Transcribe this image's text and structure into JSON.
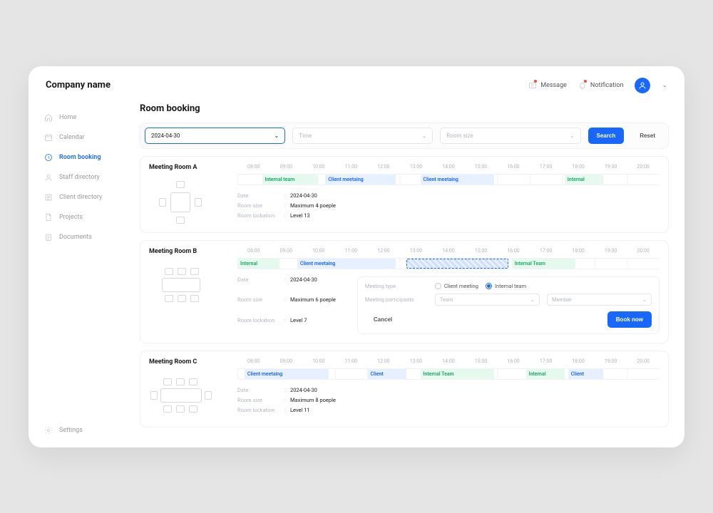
{
  "brand": "Company name",
  "header": {
    "message_label": "Message",
    "notification_label": "Notification"
  },
  "sidebar": {
    "items": [
      {
        "id": "home",
        "label": "Home"
      },
      {
        "id": "calendar",
        "label": "Calendar"
      },
      {
        "id": "room-booking",
        "label": "Room booking"
      },
      {
        "id": "staff",
        "label": "Staff directory"
      },
      {
        "id": "client",
        "label": "Client directory"
      },
      {
        "id": "projects",
        "label": "Projects"
      },
      {
        "id": "documents",
        "label": "Documents"
      }
    ],
    "footer": {
      "label": "Settings"
    },
    "active": "room-booking"
  },
  "page_title": "Room booking",
  "filters": {
    "date_value": "2024-04-30",
    "time_placeholder": "Time",
    "size_placeholder": "Room size",
    "search_label": "Search",
    "reset_label": "Reset"
  },
  "hours": [
    "08:00",
    "09:00",
    "10:00",
    "11:00",
    "12:00",
    "13:00",
    "14:00",
    "15:00",
    "16:00",
    "17:00",
    "18:00",
    "19:00",
    "20:00"
  ],
  "detail_keys": {
    "date": "Date",
    "size": "Room size",
    "location": "Room lockation"
  },
  "rooms": [
    {
      "name": "Meeting Room A",
      "date": "2024-04-30",
      "size": "Maximum 4 poeple",
      "location": "Level 13",
      "layout_type": "square4",
      "slots": [
        {
          "type": "internal",
          "label": "Internal team",
          "start": 8.7,
          "end": 10.3
        },
        {
          "type": "client",
          "label": "Client meetaing",
          "start": 10.5,
          "end": 12.5
        },
        {
          "type": "client",
          "label": "Client meetaing",
          "start": 13.2,
          "end": 15.3
        },
        {
          "type": "internal",
          "label": "Internal",
          "start": 17.3,
          "end": 18.4
        }
      ]
    },
    {
      "name": "Meeting Room B",
      "date": "2024-04-30",
      "size": "Maximum 6 poeple",
      "location": "Level 7",
      "layout_type": "rect6",
      "slots": [
        {
          "type": "internal",
          "label": "Internal",
          "start": 8.0,
          "end": 9.2
        },
        {
          "type": "client",
          "label": "Client meetaing",
          "start": 9.7,
          "end": 12.5
        },
        {
          "type": "pending",
          "label": "",
          "start": 12.8,
          "end": 15.7
        },
        {
          "type": "internal",
          "label": "Internal Team",
          "start": 15.8,
          "end": 17.6
        }
      ],
      "booking_form": {
        "type_label": "Meeting type",
        "opt_client": "Client meeting",
        "opt_internal": "Internal team",
        "selected": "internal",
        "participants_label": "Meeting participants",
        "team_placeholder": "Team",
        "member_placeholder": "Member",
        "cancel_label": "Cancel",
        "book_label": "Book now"
      }
    },
    {
      "name": "Meeting Room C",
      "date": "2024-04-30",
      "size": "Maximum 8 poeple",
      "location": "Level 11",
      "layout_type": "rect8",
      "slots": [
        {
          "type": "client",
          "label": "Client meetaing",
          "start": 8.2,
          "end": 10.6
        },
        {
          "type": "client",
          "label": "Client",
          "start": 11.7,
          "end": 12.8
        },
        {
          "type": "internal",
          "label": "Internal Team",
          "start": 13.2,
          "end": 15.3
        },
        {
          "type": "internal",
          "label": "Internal",
          "start": 16.2,
          "end": 17.3
        },
        {
          "type": "client",
          "label": "Client",
          "start": 17.4,
          "end": 18.4
        }
      ]
    }
  ],
  "colors": {
    "accent": "#1868ff",
    "internal_bg": "#e5f9ef",
    "internal_fg": "#17a95f",
    "client_bg": "#e7f0ff",
    "client_fg": "#1868ff"
  }
}
